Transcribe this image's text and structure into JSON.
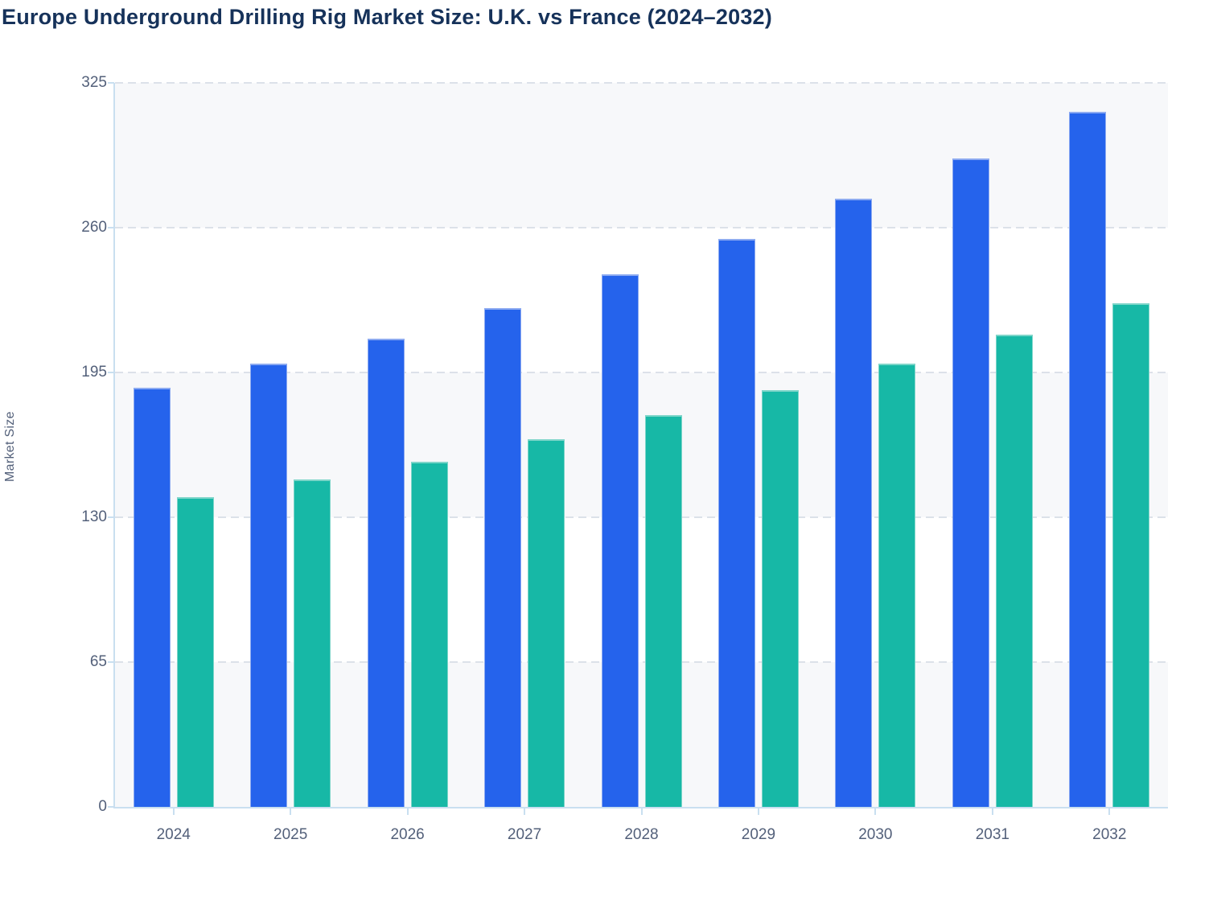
{
  "title": "Europe Underground Drilling Rig Market Size: U.K. vs France (2024–2032)",
  "chart_data": {
    "type": "bar",
    "title": "Europe Underground Drilling Rig Market Size: U.K. vs France (2024–2032)",
    "xlabel": "",
    "ylabel": "Market Size",
    "categories": [
      "2024",
      "2025",
      "2026",
      "2027",
      "2028",
      "2029",
      "2030",
      "2031",
      "2032"
    ],
    "series": [
      {
        "name": "U.K.",
        "color": "#2563ec",
        "border_color": "#8caaf1",
        "values": [
          188,
          199,
          210,
          224,
          239,
          255,
          273,
          291,
          312
        ]
      },
      {
        "name": "France",
        "color": "#17b8a6",
        "border_color": "#7dd5c9",
        "values": [
          139,
          147,
          155,
          165,
          176,
          187,
          199,
          212,
          226
        ]
      }
    ],
    "ylim": [
      0,
      325
    ],
    "y_ticks": [
      0,
      65,
      130,
      195,
      260,
      325
    ],
    "grid": "horizontal-dashed",
    "alternate_bands": true,
    "legend_position": "none"
  },
  "colors": {
    "background": "#ffffff",
    "title_text": "#16325a",
    "tick_label_text": "#53607a",
    "band_fill": "#f7f8fa",
    "gridline": "#dce1e9",
    "axis_line": "#c9dff0"
  }
}
